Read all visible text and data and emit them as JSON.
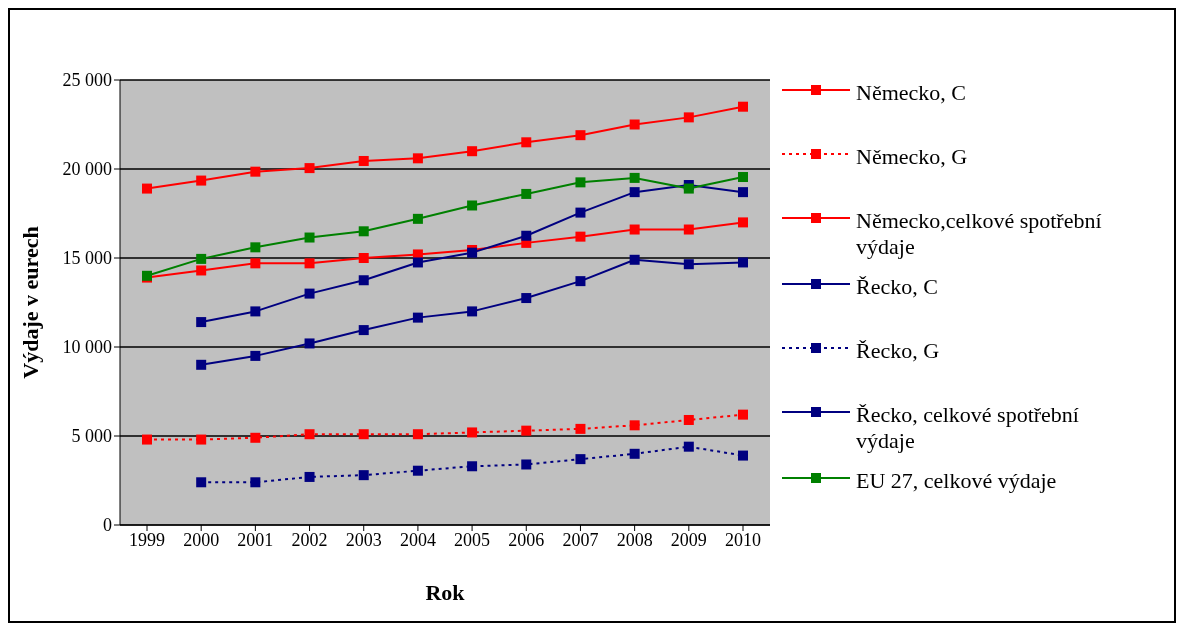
{
  "chart_data": {
    "type": "line",
    "xlabel": "Rok",
    "ylabel": "Výdaje v eurech",
    "categories": [
      "1999",
      "2000",
      "2001",
      "2002",
      "2003",
      "2004",
      "2005",
      "2006",
      "2007",
      "2008",
      "2009",
      "2010"
    ],
    "series": [
      {
        "name": "Německo, C",
        "color": "#ff0000",
        "values": [
          13900,
          14300,
          14700,
          14700,
          15000,
          15200,
          15450,
          15850,
          16200,
          16600,
          16600,
          17000
        ]
      },
      {
        "name": "Německo, G",
        "color": "#ff0000",
        "line_style": "dotted",
        "values": [
          4800,
          4800,
          4900,
          5100,
          5100,
          5100,
          5200,
          5300,
          5400,
          5600,
          5900,
          6200
        ]
      },
      {
        "name": "Německo,celkové spotřební výdaje",
        "color": "#ff0000",
        "values": [
          18900,
          19350,
          19850,
          20050,
          20450,
          20600,
          21000,
          21500,
          21900,
          22500,
          22900,
          23500
        ]
      },
      {
        "name": "Řecko, C",
        "color": "#000080",
        "values": [
          null,
          9000,
          9500,
          10200,
          10950,
          11650,
          12000,
          12750,
          13700,
          14900,
          14650,
          14750
        ]
      },
      {
        "name": "Řecko, G",
        "color": "#000080",
        "line_style": "dotted",
        "values": [
          null,
          2400,
          2400,
          2700,
          2800,
          3050,
          3300,
          3400,
          3700,
          4000,
          4400,
          3900
        ]
      },
      {
        "name": "Řecko, celkové spotřební výdaje",
        "color": "#000080",
        "values": [
          null,
          11400,
          12000,
          13000,
          13750,
          14750,
          15300,
          16250,
          17550,
          18700,
          19100,
          18700
        ]
      },
      {
        "name": "EU 27, celkové výdaje",
        "color": "#008000",
        "values": [
          14000,
          14950,
          15600,
          16150,
          16500,
          17200,
          17950,
          18600,
          19250,
          19500,
          18900,
          19550
        ]
      }
    ],
    "ylim": [
      0,
      25000
    ],
    "yticks": [
      0,
      {
        "value": 5000,
        "label": "5 000"
      },
      {
        "value": 10000,
        "label": "10 000"
      },
      {
        "value": 15000,
        "label": "15 000"
      },
      {
        "value": 20000,
        "label": "20 000"
      },
      {
        "value": 25000,
        "label": "25 000"
      }
    ],
    "grid": "y",
    "legend": "right",
    "marker": "square",
    "line_style": "solid"
  }
}
